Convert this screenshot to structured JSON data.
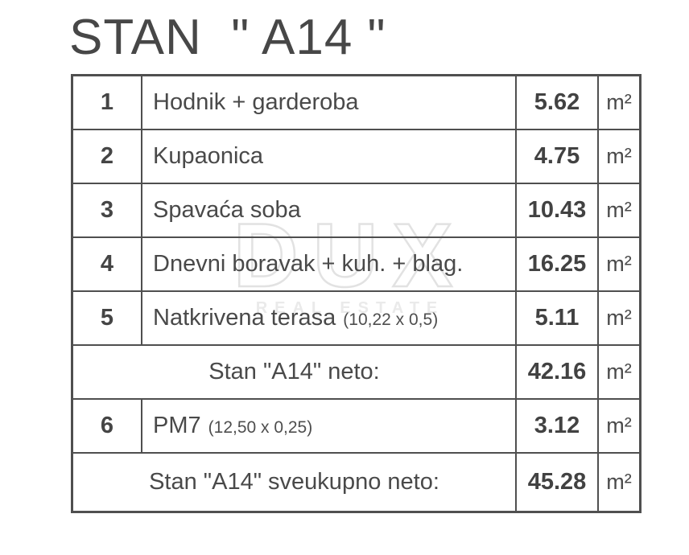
{
  "title": "STAN  \" A14 \"",
  "watermark": {
    "main": "DUX",
    "sub": "REAL ESTATE"
  },
  "colors": {
    "border": "#4f4f4f",
    "text": "#494949",
    "text_strong": "#424242",
    "watermark_stroke": "#e2e2e2",
    "background": "#ffffff"
  },
  "table": {
    "rows": [
      {
        "num": "1",
        "name": "Hodnik + garderoba",
        "note": "",
        "value": "5.62",
        "unit": "m²"
      },
      {
        "num": "2",
        "name": "Kupaonica",
        "note": "",
        "value": "4.75",
        "unit": "m²"
      },
      {
        "num": "3",
        "name": "Spavaća soba",
        "note": "",
        "value": "10.43",
        "unit": "m²"
      },
      {
        "num": "4",
        "name": "Dnevni boravak + kuh. + blag.",
        "note": "",
        "value": "16.25",
        "unit": "m²"
      },
      {
        "num": "5",
        "name": "Natkrivena terasa",
        "note": "(10,22 x 0,5)",
        "value": "5.11",
        "unit": "m²"
      },
      {
        "type": "summary",
        "label": "Stan \"A14\" neto:",
        "value": "42.16",
        "unit": "m²"
      },
      {
        "num": "6",
        "name": "PM7",
        "note": "(12,50 x 0,25)",
        "value": "3.12",
        "unit": "m²"
      },
      {
        "type": "summary",
        "label": "Stan \"A14\" sveukupno neto:",
        "value": "45.28",
        "unit": "m²"
      }
    ]
  }
}
